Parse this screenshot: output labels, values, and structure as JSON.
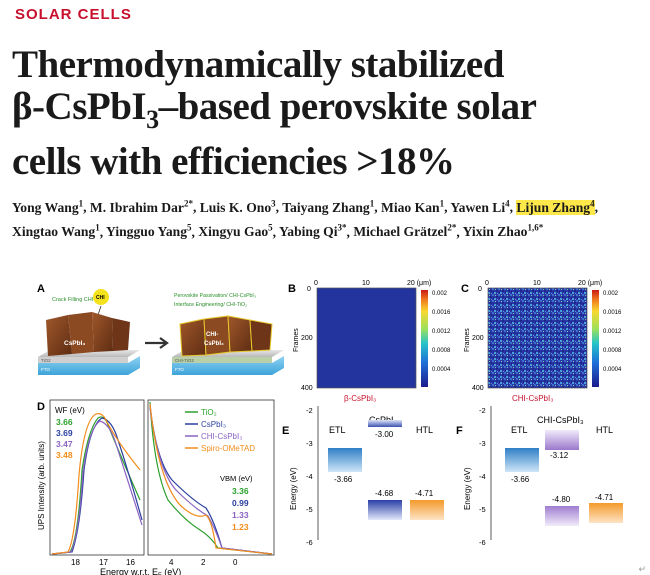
{
  "section_label": "SOLAR CELLS",
  "title": {
    "line1": "Thermodynamically stabilized",
    "line2_pre": "β-CsPbI",
    "line2_sub": "3",
    "line2_post": "–based perovskite solar",
    "line3": "cells with efficiencies >18%"
  },
  "authors": [
    {
      "name": "Yong Wang",
      "aff": "1"
    },
    {
      "name": "M. Ibrahim Dar",
      "aff": "2*"
    },
    {
      "name": "Luis K. Ono",
      "aff": "3"
    },
    {
      "name": "Taiyang Zhang",
      "aff": "1"
    },
    {
      "name": "Miao Kan",
      "aff": "1"
    },
    {
      "name": "Yawen Li",
      "aff": "4"
    },
    {
      "name": "Lijun Zhang",
      "aff": "4",
      "highlight": true
    },
    {
      "name": "Xingtao Wang",
      "aff": "1"
    },
    {
      "name": "Yingguo Yang",
      "aff": "5"
    },
    {
      "name": "Xingyu Gao",
      "aff": "5"
    },
    {
      "name": "Yabing Qi",
      "aff": "3*"
    },
    {
      "name": "Michael Grätzel",
      "aff": "2*"
    },
    {
      "name": "Yixin Zhao",
      "aff": "1,6*"
    }
  ],
  "colors": {
    "section": "#c8102e",
    "highlight": "#ffe94a",
    "tio2": "#2ca02c",
    "cspbi3": "#2b3fa0",
    "chi": "#8a63c2",
    "spiro": "#f28c1c",
    "fto": "#58b8e6",
    "crystal": "#7a3f1e",
    "etl": "#4a90c8"
  },
  "panelA": {
    "label": "A",
    "crack_text": "Crack Filling CHI",
    "bubble": "CHI",
    "bullet1": "Perovskite Passivation/ CHI-CsPbI₃",
    "bullet2": "Interface Engineering/ CHI-TiO₂",
    "crystal_left": "CsPbI₃",
    "crystal_right": "CHI-\nCsPbI₃",
    "left_layer1": "TiO2",
    "left_layer2": "FTO",
    "right_layer1": "CHI-TiO2",
    "right_layer2": "FTO"
  },
  "panelB": {
    "label": "B",
    "xticks": [
      "0",
      "10",
      "20 (μm)"
    ],
    "yticks": [
      "0",
      "200",
      "400"
    ],
    "ylabel": "Frames",
    "cbar": [
      "0.002",
      "0.0016",
      "0.0012",
      "0.0008",
      "0.0004"
    ],
    "caption": "β-CsPbI₃"
  },
  "panelC": {
    "label": "C",
    "xticks": [
      "0",
      "10",
      "20 (μm)"
    ],
    "yticks": [
      "0",
      "200",
      "400"
    ],
    "ylabel": "Frames",
    "cbar": [
      "0.002",
      "0.0016",
      "0.0012",
      "0.0008",
      "0.0004"
    ],
    "caption": "CHI-CsPbI₃"
  },
  "panelD": {
    "label": "D",
    "wf_title": "WF (eV)",
    "wf_values": [
      "3.66",
      "3.69",
      "3.47",
      "3.48"
    ],
    "legend": [
      "TiO₂",
      "CsPbI₃",
      "CHI-CsPbI₃",
      "Spiro-OMeTAD"
    ],
    "vbm_title": "VBM (eV)",
    "vbm_values": [
      "3.36",
      "0.99",
      "1.33",
      "1.23"
    ],
    "ylabel": "UPS Intensity (arb. units)",
    "xlabel": "Energy w.r.t. E",
    "xlabel_sub": "F",
    "xlabel_unit": " (eV)",
    "xticks_left": [
      "18",
      "17",
      "16"
    ],
    "xticks_right": [
      "4",
      "2",
      "0"
    ]
  },
  "panelE": {
    "label": "E",
    "ylabel": "Energy (eV)",
    "yticks": [
      "-2",
      "-3",
      "-4",
      "-5",
      "-6"
    ],
    "etl": "ETL",
    "perovskite": "CsPbI₃",
    "htl": "HTL",
    "etl_cb": "-3.66",
    "pvk_cb": "-3.00",
    "pvk_vb": "-4.68",
    "htl_vb": "-4.71"
  },
  "panelF": {
    "label": "F",
    "ylabel": "Energy (eV)",
    "yticks": [
      "-2",
      "-3",
      "-4",
      "-5",
      "-6"
    ],
    "etl": "ETL",
    "perovskite": "CHI-CsPbI₃",
    "htl": "HTL",
    "etl_cb": "-3.66",
    "pvk_cb": "-3.12",
    "pvk_vb": "-4.80",
    "htl_vb": "-4.71"
  },
  "corner_mark": "↵"
}
